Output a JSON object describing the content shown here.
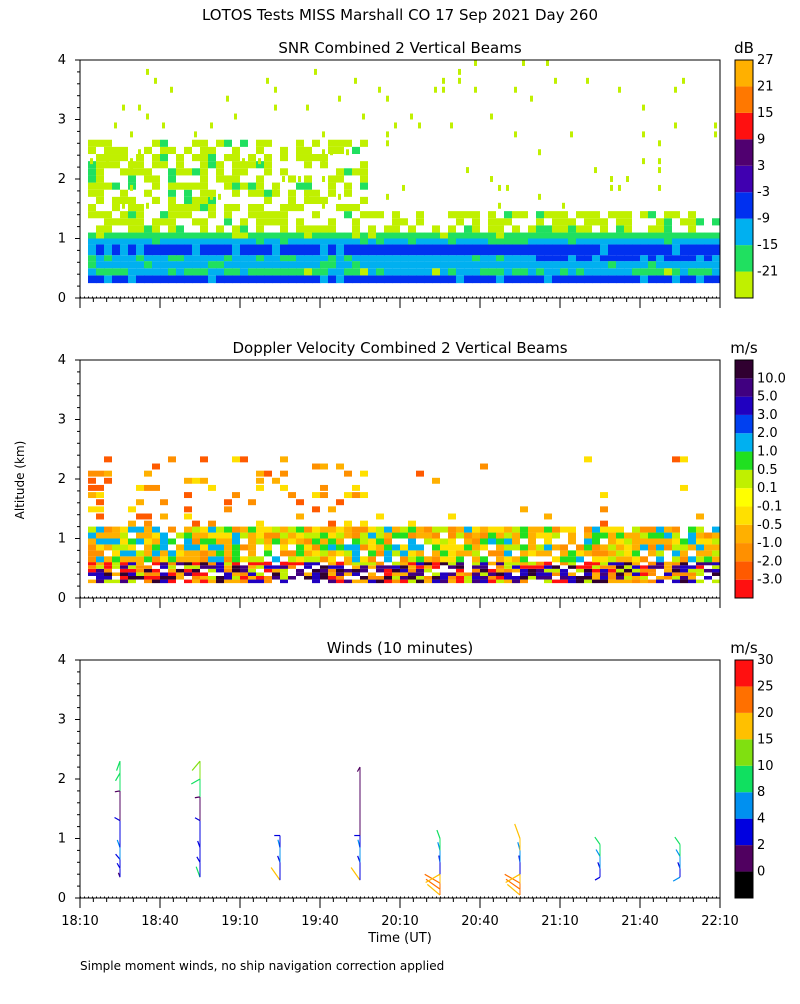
{
  "page": {
    "title": "LOTOS Tests MISS Marshall CO  17 Sep 2021 Day 260",
    "ylabel": "Altitude (km)",
    "xlabel": "Time (UT)",
    "footnote": "Simple moment winds, no ship navigation correction applied"
  },
  "chart_data": [
    {
      "type": "heatmap",
      "id": "snr",
      "title": "SNR Combined 2 Vertical Beams",
      "ylim": [
        0,
        4
      ],
      "yticks": [
        "0",
        "1",
        "2",
        "3",
        "4"
      ],
      "x_range_utc": [
        "18:10",
        "22:10"
      ],
      "colorbar": {
        "unit": "dB",
        "labels": [
          "-21",
          "-15",
          "-9",
          "-3",
          "3",
          "9",
          "15",
          "21",
          "27"
        ],
        "colors": [
          "#c0f000",
          "#20e060",
          "#00b0f0",
          "#0030f0",
          "#4000b0",
          "#500070",
          "#ff1010",
          "#ff7800",
          "#ffb000"
        ]
      }
    },
    {
      "type": "heatmap",
      "id": "doppler",
      "title": "Doppler Velocity Combined 2 Vertical Beams",
      "ylim": [
        0,
        4
      ],
      "yticks": [
        "0",
        "1",
        "2",
        "3",
        "4"
      ],
      "x_range_utc": [
        "18:10",
        "22:10"
      ],
      "colorbar": {
        "unit": "m/s",
        "labels": [
          "-3.0",
          "-2.0",
          "-1.0",
          "-0.5",
          "-0.1",
          "0.1",
          "0.5",
          "1.0",
          "2.0",
          "3.0",
          "5.0",
          "10.0"
        ],
        "colors": [
          "#ff1010",
          "#ff5a00",
          "#ff9000",
          "#ffb000",
          "#ffe000",
          "#ffff00",
          "#c0f000",
          "#20e020",
          "#00b0f0",
          "#0040f0",
          "#2000c0",
          "#400080",
          "#300030"
        ]
      }
    },
    {
      "type": "scatter",
      "id": "winds",
      "title": "Winds (10 minutes)",
      "ylim": [
        0,
        4
      ],
      "yticks": [
        "0",
        "1",
        "2",
        "3",
        "4"
      ],
      "xlim_utc": [
        "18:10",
        "22:10"
      ],
      "xticks": [
        "18:10",
        "18:40",
        "19:10",
        "19:40",
        "20:10",
        "20:40",
        "21:10",
        "21:40",
        "22:10"
      ],
      "colorbar": {
        "unit": "m/s",
        "labels": [
          "0",
          "2",
          "4",
          "8",
          "10",
          "15",
          "20",
          "25",
          "30"
        ],
        "colors": [
          "#000000",
          "#500060",
          "#0000e0",
          "#0090f0",
          "#10e060",
          "#80e010",
          "#ffc000",
          "#ff7000",
          "#ff1010"
        ]
      },
      "profiles": [
        {
          "time_min": 15,
          "segments": [
            {
              "alt": 0.35,
              "dir": 200,
              "speed": 2
            },
            {
              "alt": 0.5,
              "dir": 210,
              "speed": 4
            },
            {
              "alt": 0.65,
              "dir": 220,
              "speed": 6
            },
            {
              "alt": 0.85,
              "dir": 200,
              "speed": 8
            },
            {
              "alt": 1.3,
              "dir": 240,
              "speed": 5
            },
            {
              "alt": 1.8,
              "dir": 280,
              "speed": 3
            },
            {
              "alt": 2.1,
              "dir": 330,
              "speed": 10
            },
            {
              "alt": 2.3,
              "dir": 340,
              "speed": 12
            }
          ]
        },
        {
          "time_min": 45,
          "segments": [
            {
              "alt": 0.35,
              "dir": 200,
              "speed": 14
            },
            {
              "alt": 0.6,
              "dir": 210,
              "speed": 5
            },
            {
              "alt": 0.85,
              "dir": 200,
              "speed": 6
            },
            {
              "alt": 1.3,
              "dir": 240,
              "speed": 4
            },
            {
              "alt": 1.7,
              "dir": 280,
              "speed": 3
            },
            {
              "alt": 2.0,
              "dir": 300,
              "speed": 12
            },
            {
              "alt": 2.3,
              "dir": 320,
              "speed": 16
            }
          ]
        },
        {
          "time_min": 75,
          "segments": [
            {
              "alt": 0.3,
              "dir": 215,
              "speed": 22
            },
            {
              "alt": 0.6,
              "dir": 200,
              "speed": 6
            },
            {
              "alt": 0.85,
              "dir": 195,
              "speed": 8
            },
            {
              "alt": 1.05,
              "dir": 270,
              "speed": 4
            }
          ]
        },
        {
          "time_min": 105,
          "segments": [
            {
              "alt": 0.3,
              "dir": 215,
              "speed": 22
            },
            {
              "alt": 0.6,
              "dir": 200,
              "speed": 6
            },
            {
              "alt": 0.85,
              "dir": 195,
              "speed": 8
            },
            {
              "alt": 1.05,
              "dir": 270,
              "speed": 4
            },
            {
              "alt": 2.2,
              "dir": 330,
              "speed": 3
            }
          ]
        },
        {
          "time_min": 135,
          "segments": [
            {
              "alt": 0.05,
              "dir": 230,
              "speed": 24
            },
            {
              "alt": 0.15,
              "dir": 235,
              "speed": 25
            },
            {
              "alt": 0.25,
              "dir": 240,
              "speed": 26
            },
            {
              "alt": 0.4,
              "dir": 300,
              "speed": 24
            },
            {
              "alt": 0.6,
              "dir": 190,
              "speed": 6
            },
            {
              "alt": 0.8,
              "dir": 195,
              "speed": 9
            },
            {
              "alt": 1.0,
              "dir": 200,
              "speed": 10
            }
          ]
        },
        {
          "time_min": 165,
          "segments": [
            {
              "alt": 0.05,
              "dir": 230,
              "speed": 24
            },
            {
              "alt": 0.15,
              "dir": 235,
              "speed": 25
            },
            {
              "alt": 0.25,
              "dir": 240,
              "speed": 26
            },
            {
              "alt": 0.4,
              "dir": 300,
              "speed": 24
            },
            {
              "alt": 0.6,
              "dir": 190,
              "speed": 6
            },
            {
              "alt": 0.8,
              "dir": 195,
              "speed": 9
            },
            {
              "alt": 1.0,
              "dir": 200,
              "speed": 22
            }
          ]
        },
        {
          "time_min": 195,
          "segments": [
            {
              "alt": 0.35,
              "dir": 300,
              "speed": 4
            },
            {
              "alt": 0.5,
              "dir": 200,
              "speed": 5
            },
            {
              "alt": 0.7,
              "dir": 210,
              "speed": 8
            },
            {
              "alt": 0.9,
              "dir": 215,
              "speed": 10
            }
          ]
        },
        {
          "time_min": 225,
          "segments": [
            {
              "alt": 0.35,
              "dir": 300,
              "speed": 8
            },
            {
              "alt": 0.5,
              "dir": 200,
              "speed": 5
            },
            {
              "alt": 0.7,
              "dir": 210,
              "speed": 8
            },
            {
              "alt": 0.9,
              "dir": 215,
              "speed": 10
            }
          ]
        }
      ]
    }
  ]
}
